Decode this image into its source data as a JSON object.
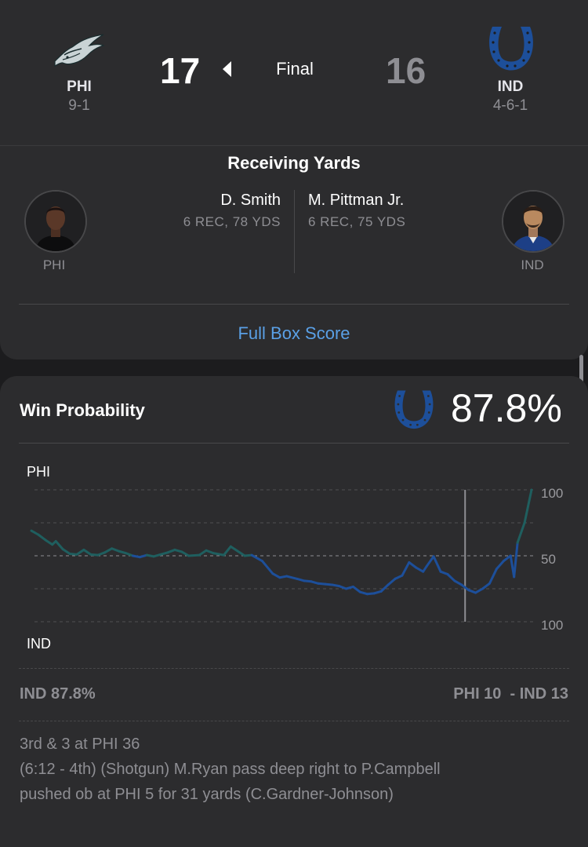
{
  "game": {
    "status": "Final",
    "home": {
      "abbr": "PHI",
      "record": "9-1",
      "score": "17",
      "logo": "eagles-logo",
      "color": "#004c54"
    },
    "away": {
      "abbr": "IND",
      "record": "4-6-1",
      "score": "16",
      "logo": "colts-horseshoe-logo",
      "color": "#0b3f8a"
    }
  },
  "leaders": {
    "title": "Receiving Yards",
    "home_player": {
      "name": "D. Smith",
      "stat": "6 REC, 78 YDS",
      "team": "PHI"
    },
    "away_player": {
      "name": "M. Pittman Jr.",
      "stat": "6 REC, 75 YDS",
      "team": "IND"
    },
    "full_box_score": "Full Box Score"
  },
  "win_probability": {
    "title": "Win Probability",
    "leader_logo": "colts-horseshoe-logo",
    "leader_pct": "87.8%",
    "top_team": "PHI",
    "bottom_team": "IND",
    "summary_left": "IND 87.8%",
    "summary_right": "PHI 10  - IND 13",
    "play_situation": "3rd & 3 at PHI 36",
    "play_description_line1": "(6:12 - 4th) (Shotgun) M.Ryan pass deep right to P.Campbell",
    "play_description_line2": "pushed ob at PHI 5 for 31 yards (C.Gardner-Johnson)"
  },
  "chart_data": {
    "type": "line",
    "title": "Win Probability",
    "ylabel_top": "PHI",
    "ylabel_bottom": "IND",
    "y_tick_labels": [
      "100",
      "50",
      "100"
    ],
    "ylim": [
      -100,
      100
    ],
    "grid": true,
    "series": [
      {
        "name": "PHI",
        "color_phi": "#1f5f5f",
        "color_ind": "#1d4f9a",
        "values": [
          [
            0,
            38
          ],
          [
            2,
            32
          ],
          [
            4,
            24
          ],
          [
            6,
            17
          ],
          [
            7,
            22
          ],
          [
            9,
            10
          ],
          [
            11,
            3
          ],
          [
            13,
            2
          ],
          [
            15,
            9
          ],
          [
            17,
            2
          ],
          [
            19,
            1
          ],
          [
            21,
            5
          ],
          [
            23,
            11
          ],
          [
            25,
            7
          ],
          [
            27,
            4
          ],
          [
            29,
            0
          ],
          [
            31,
            -2
          ],
          [
            33,
            1
          ],
          [
            35,
            -1
          ],
          [
            37,
            2
          ],
          [
            39,
            5
          ],
          [
            41,
            9
          ],
          [
            43,
            6
          ],
          [
            45,
            0
          ],
          [
            48,
            1
          ],
          [
            50,
            8
          ],
          [
            52,
            4
          ],
          [
            55,
            1
          ],
          [
            57,
            14
          ],
          [
            59,
            7
          ],
          [
            61,
            0
          ],
          [
            63,
            1
          ],
          [
            66,
            -8
          ],
          [
            69,
            -27
          ],
          [
            71,
            -33
          ],
          [
            73,
            -31
          ],
          [
            76,
            -35
          ],
          [
            78,
            -38
          ],
          [
            80,
            -39
          ],
          [
            82,
            -42
          ],
          [
            84,
            -43
          ],
          [
            86,
            -44
          ],
          [
            88,
            -46
          ],
          [
            90,
            -50
          ],
          [
            92,
            -47
          ],
          [
            94,
            -55
          ],
          [
            96,
            -58
          ],
          [
            98,
            -57
          ],
          [
            100,
            -54
          ],
          [
            102,
            -44
          ],
          [
            104,
            -35
          ],
          [
            106,
            -30
          ],
          [
            108,
            -10
          ],
          [
            110,
            -18
          ],
          [
            112,
            -24
          ],
          [
            113,
            -16
          ],
          [
            115,
            -1
          ],
          [
            117,
            -24
          ],
          [
            119,
            -28
          ],
          [
            121,
            -38
          ],
          [
            123,
            -44
          ],
          [
            125,
            -52
          ],
          [
            127,
            -56
          ],
          [
            129,
            -50
          ],
          [
            131,
            -42
          ],
          [
            133,
            -20
          ],
          [
            135,
            -8
          ],
          [
            137,
            0
          ],
          [
            138,
            -32
          ],
          [
            139,
            20
          ],
          [
            141,
            50
          ],
          [
            143,
            100
          ]
        ]
      }
    ],
    "marker": {
      "x": 124
    }
  }
}
